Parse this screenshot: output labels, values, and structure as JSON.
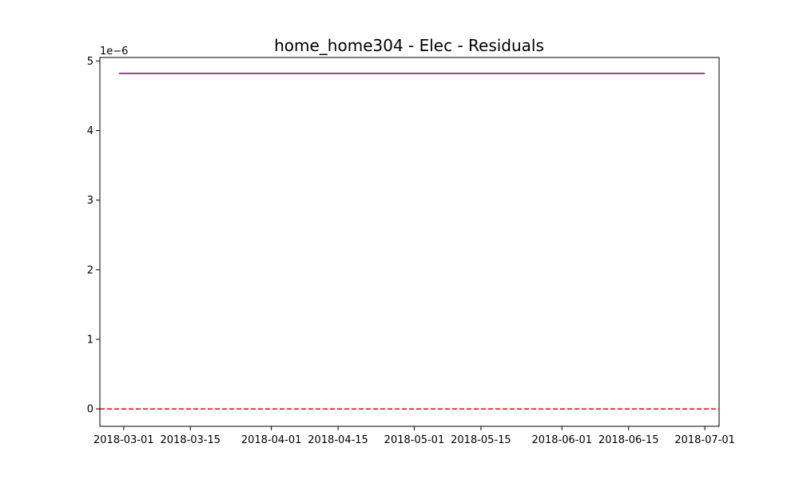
{
  "chart_data": {
    "type": "line",
    "title": "home_home304 - Elec - Residuals",
    "xlabel": "",
    "ylabel": "",
    "y_offset_label": "1e−6",
    "y_scale": 1e-06,
    "xlim": [
      "2018-02-24",
      "2018-07-04"
    ],
    "ylim": [
      -2.5e-07,
      5.05e-06
    ],
    "x_ticks": [
      "2018-03-01",
      "2018-03-15",
      "2018-04-01",
      "2018-04-15",
      "2018-05-01",
      "2018-05-15",
      "2018-06-01",
      "2018-06-15",
      "2018-07-01"
    ],
    "y_ticks": [
      0,
      1e-06,
      2e-06,
      3e-06,
      4e-06,
      5e-06
    ],
    "y_tick_labels": [
      "0",
      "1",
      "2",
      "3",
      "4",
      "5"
    ],
    "grid": false,
    "series": [
      {
        "color": "#800080",
        "x": [
          "2018-02-28",
          "2018-07-01"
        ],
        "y": [
          4.82e-06,
          4.82e-06
        ]
      }
    ],
    "reference_lines": [
      {
        "y": 0,
        "color": "#ff0000",
        "style": "dashed"
      }
    ]
  }
}
